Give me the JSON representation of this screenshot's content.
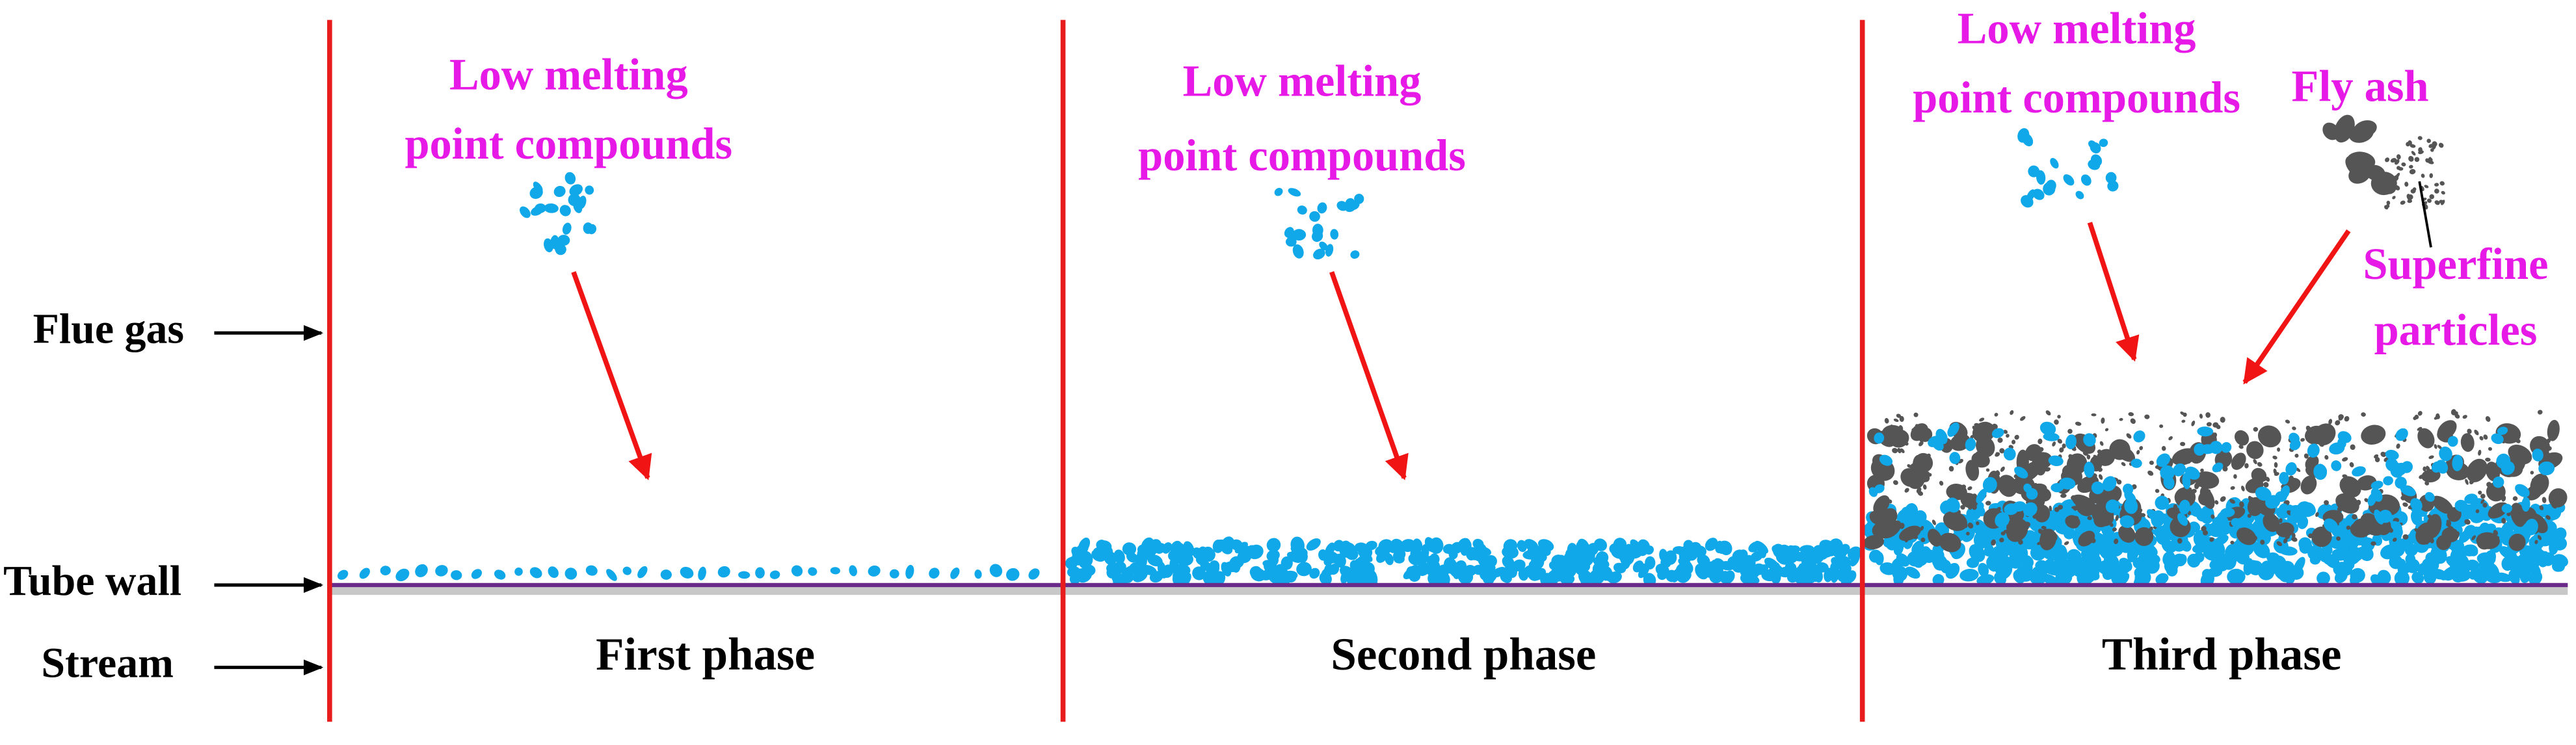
{
  "side_labels": [
    "Flue gas",
    "Tube wall",
    "Stream"
  ],
  "phases": [
    {
      "name": "First phase",
      "annotations": [
        {
          "lines": [
            "Low melting",
            "point compounds"
          ]
        }
      ]
    },
    {
      "name": "Second phase",
      "annotations": [
        {
          "lines": [
            "Low melting",
            "point compounds"
          ]
        }
      ]
    },
    {
      "name": "Third phase",
      "annotations": [
        {
          "lines": [
            "Low melting",
            "point compounds"
          ]
        },
        {
          "lines": [
            "Fly ash"
          ]
        },
        {
          "lines": [
            "Superfine",
            "particles"
          ]
        }
      ]
    }
  ]
}
